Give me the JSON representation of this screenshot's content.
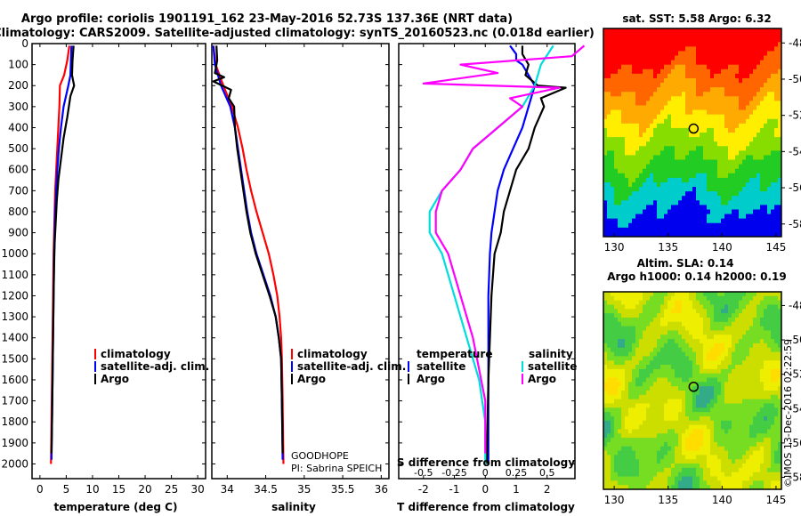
{
  "header": {
    "line1": "Argo profile: coriolis 1901191_162 23-May-2016 52.73S 137.36E (NRT data)",
    "line2": "Climatology: CARS2009. Satellite-adjusted climatology: synTS_20160523.nc (0.018d earlier)"
  },
  "credit": "©IMOS 13-Dec-2016 02:22:59",
  "colors": {
    "climatology": "#ff0000",
    "satellite": "#0000ff",
    "argo": "#000000",
    "s_satellite": "#00dddd",
    "s_argo": "#ff00ff"
  },
  "chart_data": [
    {
      "type": "line",
      "id": "temperature",
      "xlabel": "temperature (deg C)",
      "xlim": [
        -1.5,
        31.5
      ],
      "ylim": [
        2070,
        0
      ],
      "xticks": [
        0,
        5,
        10,
        15,
        20,
        25,
        30
      ],
      "yticks": [
        0,
        100,
        200,
        300,
        400,
        500,
        600,
        700,
        800,
        900,
        1000,
        1100,
        1200,
        1300,
        1400,
        1500,
        1600,
        1700,
        1800,
        1900,
        2000
      ],
      "legend": [
        "climatology",
        "satellite-adj. clim.",
        "Argo"
      ],
      "series": [
        {
          "name": "climatology",
          "color": "#ff0000",
          "points": [
            [
              5.6,
              10
            ],
            [
              5.2,
              80
            ],
            [
              4.6,
              150
            ],
            [
              3.8,
              200
            ],
            [
              3.7,
              300
            ],
            [
              3.5,
              400
            ],
            [
              3.3,
              500
            ],
            [
              3.1,
              600
            ],
            [
              2.9,
              700
            ],
            [
              2.8,
              800
            ],
            [
              2.7,
              900
            ],
            [
              2.6,
              1000
            ],
            [
              2.5,
              1200
            ],
            [
              2.4,
              1400
            ],
            [
              2.3,
              1600
            ],
            [
              2.2,
              1800
            ],
            [
              2.1,
              2000
            ]
          ]
        },
        {
          "name": "satellite-adj. clim.",
          "color": "#0000ff",
          "points": [
            [
              6.0,
              10
            ],
            [
              5.9,
              80
            ],
            [
              5.8,
              150
            ],
            [
              5.4,
              200
            ],
            [
              4.5,
              300
            ],
            [
              4.0,
              400
            ],
            [
              3.6,
              500
            ],
            [
              3.3,
              600
            ],
            [
              3.1,
              700
            ],
            [
              2.9,
              800
            ],
            [
              2.8,
              900
            ],
            [
              2.7,
              1000
            ],
            [
              2.6,
              1200
            ],
            [
              2.5,
              1400
            ],
            [
              2.4,
              1600
            ],
            [
              2.3,
              1800
            ],
            [
              2.2,
              1980
            ]
          ]
        },
        {
          "name": "Argo",
          "color": "#000000",
          "points": [
            [
              6.4,
              10
            ],
            [
              6.2,
              80
            ],
            [
              6.1,
              150
            ],
            [
              6.5,
              200
            ],
            [
              5.8,
              250
            ],
            [
              5.2,
              350
            ],
            [
              4.5,
              450
            ],
            [
              4.0,
              550
            ],
            [
              3.5,
              650
            ],
            [
              3.2,
              750
            ],
            [
              3.0,
              850
            ],
            [
              2.8,
              950
            ],
            [
              2.7,
              1050
            ],
            [
              2.6,
              1200
            ],
            [
              2.5,
              1400
            ],
            [
              2.4,
              1600
            ],
            [
              2.3,
              1800
            ],
            [
              2.2,
              1950
            ]
          ]
        }
      ]
    },
    {
      "type": "line",
      "id": "salinity",
      "xlabel": "salinity",
      "xlim": [
        33.8,
        36.1
      ],
      "ylim": [
        2070,
        0
      ],
      "xticks": [
        34,
        34.5,
        35,
        35.5,
        36
      ],
      "legend": [
        "climatology",
        "satellite-adj. clim.",
        "Argo"
      ],
      "annotation": [
        "GOODHOPE",
        "PI: Sabrina SPEICH"
      ],
      "series": [
        {
          "name": "climatology",
          "color": "#ff0000",
          "points": [
            [
              33.82,
              10
            ],
            [
              33.85,
              100
            ],
            [
              33.95,
              200
            ],
            [
              34.06,
              300
            ],
            [
              34.14,
              400
            ],
            [
              34.2,
              500
            ],
            [
              34.25,
              600
            ],
            [
              34.31,
              700
            ],
            [
              34.38,
              800
            ],
            [
              34.46,
              900
            ],
            [
              34.54,
              1000
            ],
            [
              34.6,
              1100
            ],
            [
              34.65,
              1200
            ],
            [
              34.68,
              1300
            ],
            [
              34.7,
              1400
            ],
            [
              34.71,
              1500
            ],
            [
              34.72,
              1700
            ],
            [
              34.73,
              2000
            ]
          ]
        },
        {
          "name": "satellite-adj. clim.",
          "color": "#0000ff",
          "points": [
            [
              33.82,
              10
            ],
            [
              33.84,
              100
            ],
            [
              33.92,
              200
            ],
            [
              34.04,
              300
            ],
            [
              34.1,
              400
            ],
            [
              34.14,
              500
            ],
            [
              34.18,
              600
            ],
            [
              34.22,
              700
            ],
            [
              34.26,
              800
            ],
            [
              34.31,
              900
            ],
            [
              34.38,
              1000
            ],
            [
              34.47,
              1100
            ],
            [
              34.56,
              1200
            ],
            [
              34.63,
              1300
            ],
            [
              34.67,
              1400
            ],
            [
              34.7,
              1500
            ],
            [
              34.71,
              1700
            ],
            [
              34.72,
              1980
            ]
          ]
        },
        {
          "name": "Argo",
          "color": "#000000",
          "points": [
            [
              33.86,
              10
            ],
            [
              33.87,
              80
            ],
            [
              33.84,
              140
            ],
            [
              33.96,
              160
            ],
            [
              33.82,
              180
            ],
            [
              34.05,
              220
            ],
            [
              34.02,
              260
            ],
            [
              34.09,
              300
            ],
            [
              34.1,
              400
            ],
            [
              34.13,
              500
            ],
            [
              34.17,
              600
            ],
            [
              34.21,
              700
            ],
            [
              34.25,
              800
            ],
            [
              34.3,
              900
            ],
            [
              34.37,
              1000
            ],
            [
              34.46,
              1100
            ],
            [
              34.55,
              1200
            ],
            [
              34.63,
              1300
            ],
            [
              34.67,
              1400
            ],
            [
              34.7,
              1500
            ],
            [
              34.71,
              1700
            ],
            [
              34.72,
              1950
            ]
          ]
        }
      ]
    },
    {
      "type": "line",
      "id": "difference",
      "xlabel": "T difference from climatology",
      "xlabel2": "S difference from climatology",
      "xlim": [
        -2.8,
        2.9
      ],
      "ylim": [
        2070,
        0
      ],
      "xticks": [
        -2,
        -1,
        0,
        1,
        2
      ],
      "xticks2": [
        "-0.5",
        "-0.25",
        "0",
        "0.25",
        "0.5"
      ],
      "legend_left": {
        "title": "temperature",
        "items": [
          "satellite",
          "Argo"
        ]
      },
      "legend_right": {
        "title": "salinity",
        "items": [
          "satellite",
          "Argo"
        ]
      },
      "series": [
        {
          "name": "T satellite",
          "color": "#0000ff",
          "points": [
            [
              0.8,
              10
            ],
            [
              1.0,
              50
            ],
            [
              1.0,
              80
            ],
            [
              1.2,
              100
            ],
            [
              1.4,
              150
            ],
            [
              1.6,
              200
            ],
            [
              1.5,
              250
            ],
            [
              1.4,
              300
            ],
            [
              1.2,
              400
            ],
            [
              0.9,
              500
            ],
            [
              0.6,
              600
            ],
            [
              0.4,
              700
            ],
            [
              0.3,
              800
            ],
            [
              0.2,
              900
            ],
            [
              0.15,
              1000
            ],
            [
              0.1,
              1200
            ],
            [
              0.1,
              1600
            ],
            [
              0.1,
              2000
            ]
          ]
        },
        {
          "name": "T Argo",
          "color": "#000000",
          "points": [
            [
              1.2,
              10
            ],
            [
              1.2,
              50
            ],
            [
              1.4,
              100
            ],
            [
              1.3,
              150
            ],
            [
              1.7,
              200
            ],
            [
              2.6,
              210
            ],
            [
              1.8,
              260
            ],
            [
              1.9,
              300
            ],
            [
              1.6,
              400
            ],
            [
              1.4,
              500
            ],
            [
              1.0,
              600
            ],
            [
              0.8,
              700
            ],
            [
              0.6,
              800
            ],
            [
              0.5,
              900
            ],
            [
              0.3,
              1000
            ],
            [
              0.2,
              1200
            ],
            [
              0.1,
              1600
            ],
            [
              0.05,
              2000
            ]
          ]
        },
        {
          "name": "S satellite",
          "color": "#00dddd",
          "points": [
            [
              0.55,
              10
            ],
            [
              0.45,
              100
            ],
            [
              0.4,
              200
            ],
            [
              0.3,
              300
            ],
            [
              0.1,
              400
            ],
            [
              -0.1,
              500
            ],
            [
              -0.2,
              600
            ],
            [
              -0.35,
              700
            ],
            [
              -0.45,
              800
            ],
            [
              -0.45,
              900
            ],
            [
              -0.35,
              1000
            ],
            [
              -0.25,
              1200
            ],
            [
              -0.15,
              1400
            ],
            [
              -0.05,
              1600
            ],
            [
              0,
              1800
            ],
            [
              0,
              2000
            ]
          ]
        },
        {
          "name": "S Argo",
          "color": "#ff00ff",
          "points": [
            [
              0.8,
              10
            ],
            [
              0.7,
              60
            ],
            [
              -0.2,
              100
            ],
            [
              0.1,
              140
            ],
            [
              -0.5,
              190
            ],
            [
              0.6,
              210
            ],
            [
              0.2,
              260
            ],
            [
              0.3,
              300
            ],
            [
              0.1,
              400
            ],
            [
              -0.1,
              500
            ],
            [
              -0.2,
              600
            ],
            [
              -0.35,
              700
            ],
            [
              -0.4,
              800
            ],
            [
              -0.4,
              900
            ],
            [
              -0.3,
              1000
            ],
            [
              -0.2,
              1200
            ],
            [
              -0.1,
              1400
            ],
            [
              0,
              1700
            ],
            [
              0,
              1950
            ]
          ]
        }
      ]
    }
  ],
  "maps": [
    {
      "title": "sat. SST: 5.58 Argo: 6.32",
      "xticks": [
        "130",
        "135",
        "140",
        "145"
      ],
      "yticks": [
        "-48",
        "-50",
        "-52",
        "-54",
        "-56",
        "-58"
      ],
      "colors": [
        "#0000ee",
        "#00cccc",
        "#22cc22",
        "#88dd00",
        "#ffee00",
        "#ffaa00",
        "#ff6600",
        "#ff0000"
      ]
    },
    {
      "title": "Altim. SLA: 0.14",
      "title2": "Argo h1000: 0.14 h2000: 0.19",
      "xticks": [
        "130",
        "135",
        "140",
        "145"
      ],
      "yticks": [
        "-48",
        "-50",
        "-52",
        "-54",
        "-56",
        "-58"
      ],
      "colors": [
        "#33aa88",
        "#44cc44",
        "#77dd22",
        "#ccdd00",
        "#eeee00",
        "#ffdd00"
      ]
    }
  ]
}
